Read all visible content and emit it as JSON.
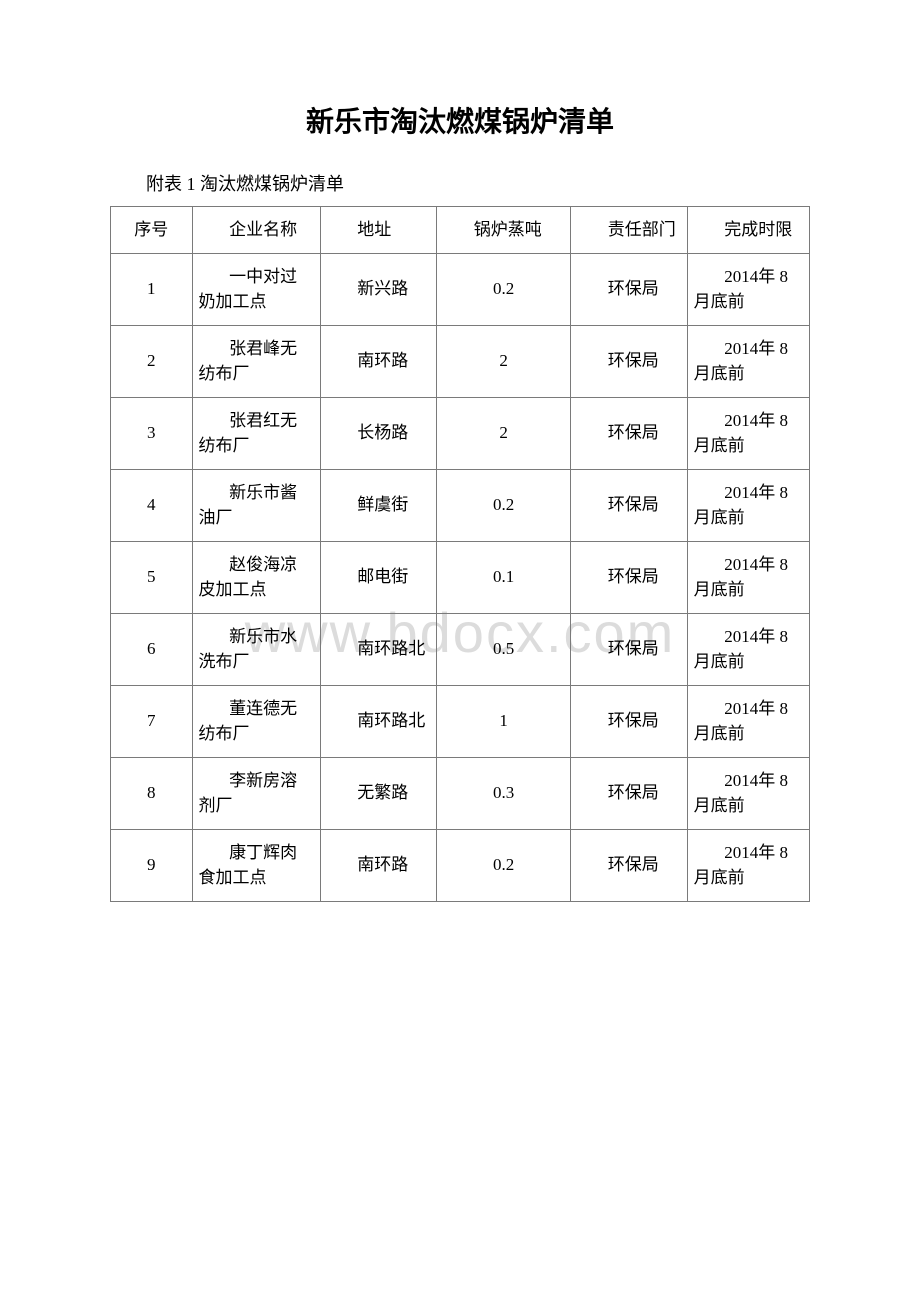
{
  "title": "新乐市淘汰燃煤锅炉清单",
  "subtitle": "附表 1 淘汰燃煤锅炉清单",
  "watermark": "www.bdocx.com",
  "table": {
    "headers": {
      "seq": "序号",
      "name": "企业名称",
      "addr": "地址",
      "ton": "锅炉蒸吨",
      "dept": "责任部门",
      "deadline": "完成时限"
    },
    "rows": [
      {
        "seq": "1",
        "name": "一中对过奶加工点",
        "addr": "新兴路",
        "ton": "0.2",
        "dept": "环保局",
        "deadline": "2014年 8 月底前"
      },
      {
        "seq": "2",
        "name": "张君峰无纺布厂",
        "addr": "南环路",
        "ton": "2",
        "dept": "环保局",
        "deadline": "2014年 8 月底前"
      },
      {
        "seq": "3",
        "name": "张君红无纺布厂",
        "addr": "长杨路",
        "ton": "2",
        "dept": "环保局",
        "deadline": "2014年 8 月底前"
      },
      {
        "seq": "4",
        "name": "新乐市酱油厂",
        "addr": "鲜虞街",
        "ton": "0.2",
        "dept": "环保局",
        "deadline": "2014年 8 月底前"
      },
      {
        "seq": "5",
        "name": "赵俊海凉皮加工点",
        "addr": "邮电街",
        "ton": "0.1",
        "dept": "环保局",
        "deadline": "2014年 8 月底前"
      },
      {
        "seq": "6",
        "name": "新乐市水洗布厂",
        "addr": "南环路北",
        "ton": "0.5",
        "dept": "环保局",
        "deadline": "2014年 8 月底前"
      },
      {
        "seq": "7",
        "name": "董连德无纺布厂",
        "addr": "南环路北",
        "ton": "1",
        "dept": "环保局",
        "deadline": "2014年 8 月底前"
      },
      {
        "seq": "8",
        "name": "李新房溶剂厂",
        "addr": "无繁路",
        "ton": "0.3",
        "dept": "环保局",
        "deadline": "2014年 8 月底前"
      },
      {
        "seq": "9",
        "name": "康丁辉肉食加工点",
        "addr": "南环路",
        "ton": "0.2",
        "dept": "环保局",
        "deadline": "2014年 8 月底前"
      }
    ]
  }
}
